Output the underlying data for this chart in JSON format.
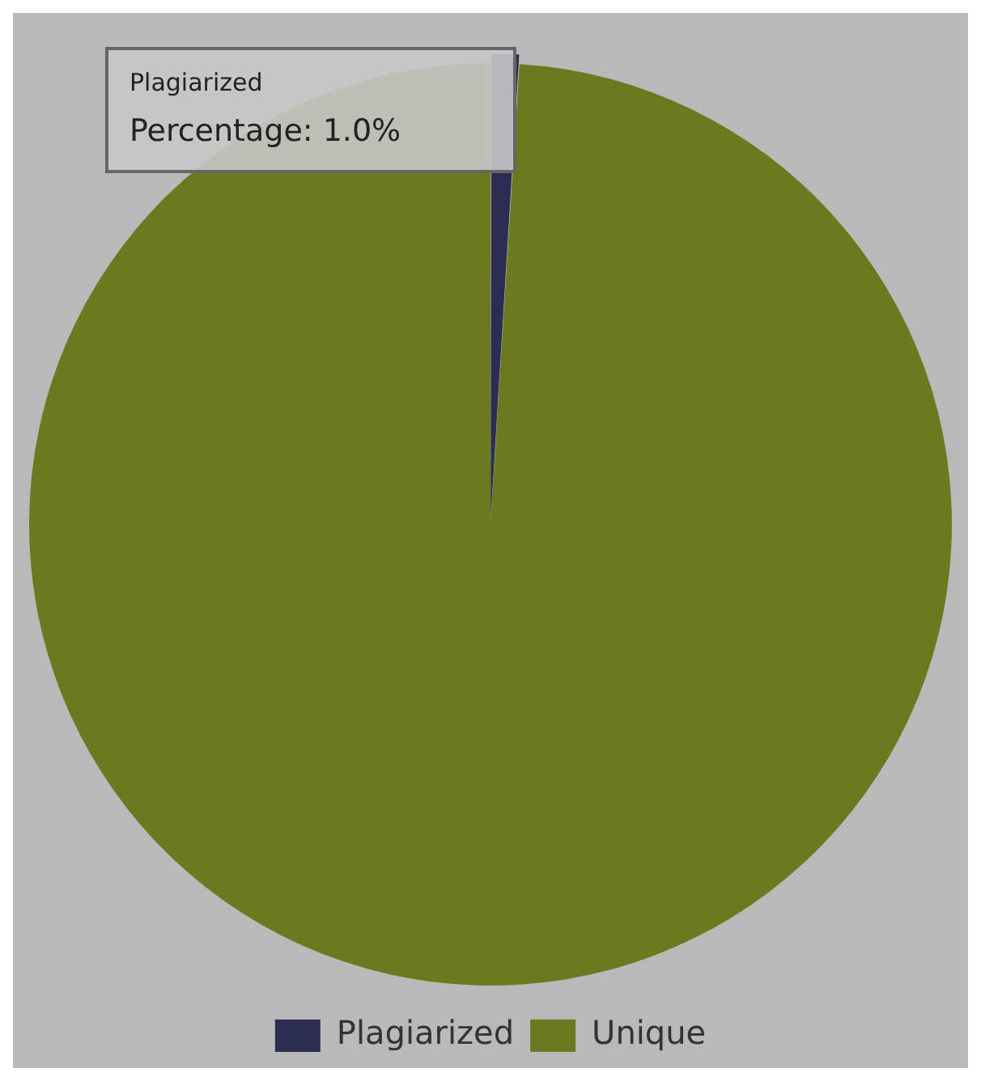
{
  "chart_data": {
    "type": "pie",
    "categories": [
      "Plagiarized",
      "Unique"
    ],
    "values": [
      1,
      99
    ],
    "colors": [
      "#2b2d52",
      "#6b7a1e"
    ],
    "legend": "bottom",
    "annotations": [
      "Plagiarized",
      "Percentage: 1.0%"
    ]
  }
}
